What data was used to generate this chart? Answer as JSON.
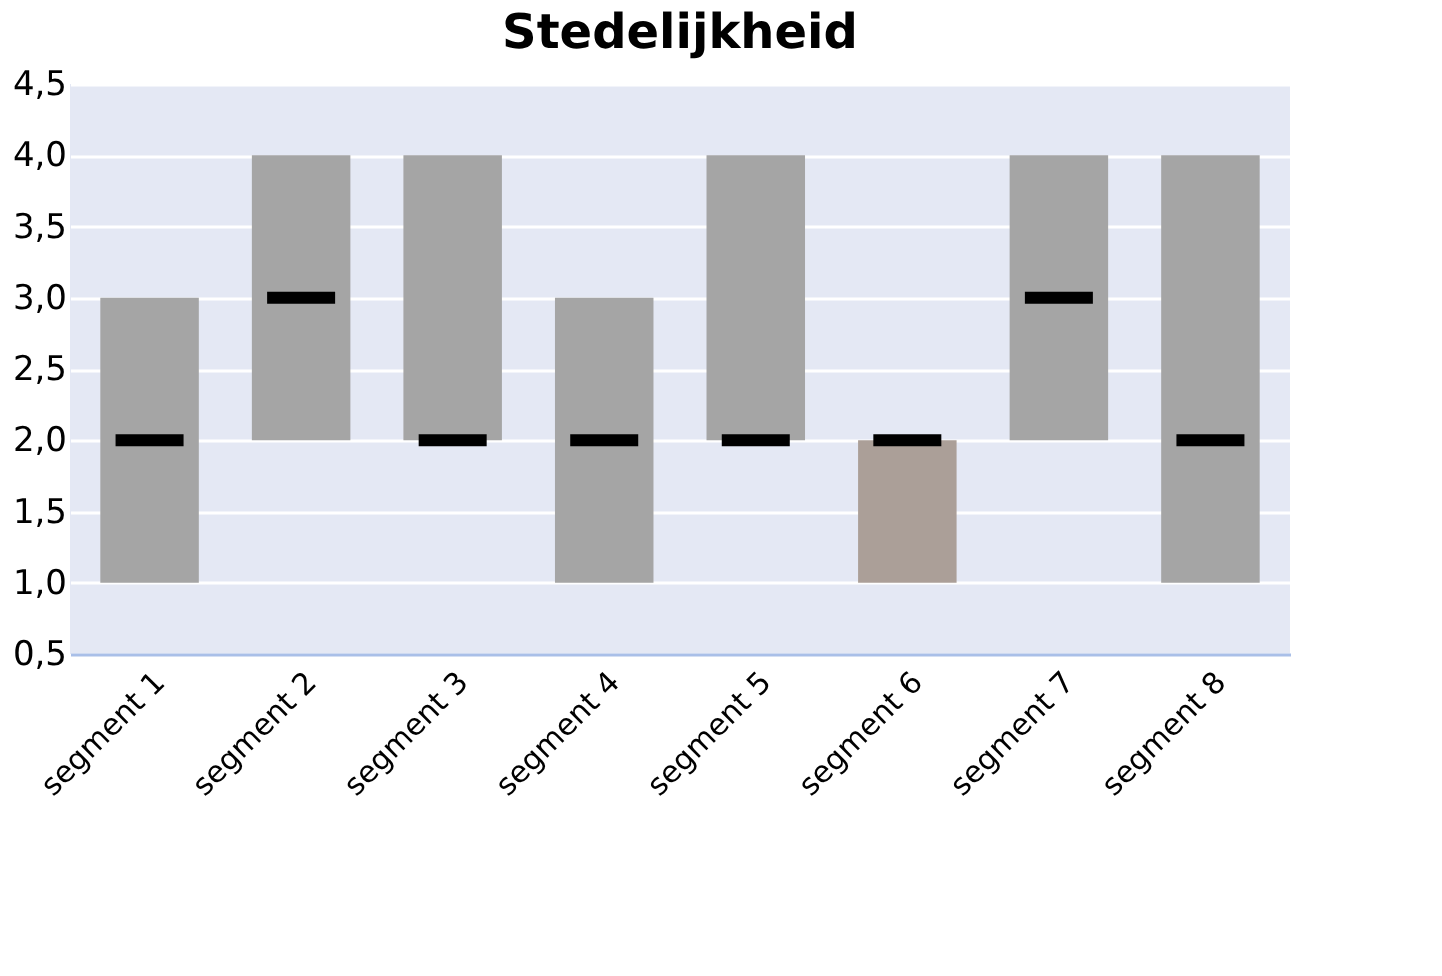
{
  "chart_data": {
    "type": "box",
    "title": "Stedelijkheid",
    "categories": [
      "segment 1",
      "segment 2",
      "segment 3",
      "segment 4",
      "segment 5",
      "segment 6",
      "segment 7",
      "segment 8"
    ],
    "boxes": [
      {
        "low": 1,
        "q1": 1,
        "median": 2,
        "q3": 3,
        "high": 3
      },
      {
        "low": 2,
        "q1": 2,
        "median": 3,
        "q3": 4,
        "high": 4
      },
      {
        "low": 2,
        "q1": 2,
        "median": 2,
        "q3": 4,
        "high": 4
      },
      {
        "low": 1,
        "q1": 1,
        "median": 2,
        "q3": 3,
        "high": 3
      },
      {
        "low": 2,
        "q1": 2,
        "median": 2,
        "q3": 4,
        "high": 4
      },
      {
        "low": 1,
        "q1": 1,
        "median": 2,
        "q3": 2,
        "high": 2
      },
      {
        "low": 2,
        "q1": 2,
        "median": 3,
        "q3": 4,
        "high": 4
      },
      {
        "low": 1,
        "q1": 1,
        "median": 2,
        "q3": 4,
        "high": 4
      }
    ],
    "colors": [
      "#a5a5a5",
      "#a5a5a5",
      "#a5a5a5",
      "#a5a5a5",
      "#a5a5a5",
      "#ab9f98",
      "#a5a5a5",
      "#a5a5a5"
    ],
    "ylim": [
      0.5,
      4.5
    ],
    "yticks": [
      {
        "value": 0.5,
        "label": "0,5"
      },
      {
        "value": 1,
        "label": "1,0"
      },
      {
        "value": 1.5,
        "label": "1,5"
      },
      {
        "value": 2,
        "label": "2,0"
      },
      {
        "value": 2.5,
        "label": "2,5"
      },
      {
        "value": 3,
        "label": "3,0"
      },
      {
        "value": 3.5,
        "label": "3,5"
      },
      {
        "value": 4,
        "label": "4,0"
      },
      {
        "value": 4.5,
        "label": "4,5"
      }
    ],
    "grid": "y"
  }
}
